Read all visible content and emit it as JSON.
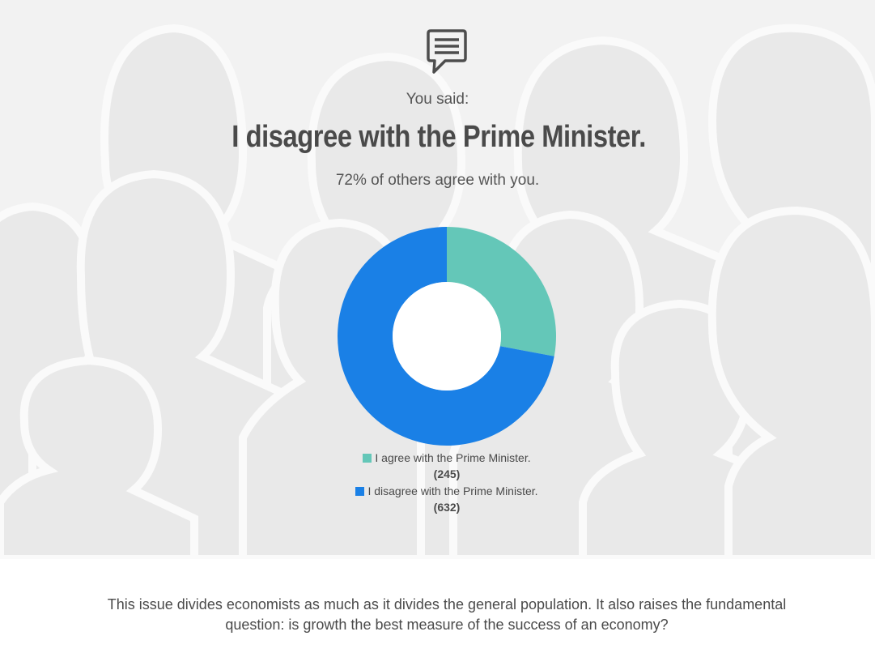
{
  "poll": {
    "intro": "You said:",
    "answer": "I disagree with the Prime Minister.",
    "share_text": "72% of others agree with you."
  },
  "chart_data": {
    "type": "pie",
    "donut": true,
    "categories": [
      "I agree with the Prime Minister.",
      "I disagree with the Prime Minister."
    ],
    "values": [
      245,
      632
    ],
    "colors": [
      "#64c7b8",
      "#1a80e6"
    ],
    "labels": [
      "(245)",
      "(632)"
    ],
    "legend": "bottom"
  },
  "footer": {
    "text": "This issue divides economists as much as it divides the general population. It also raises the fundamental question: is growth the best measure of the success of an economy?"
  },
  "icons": {
    "header": "speech-bubble-icon"
  }
}
